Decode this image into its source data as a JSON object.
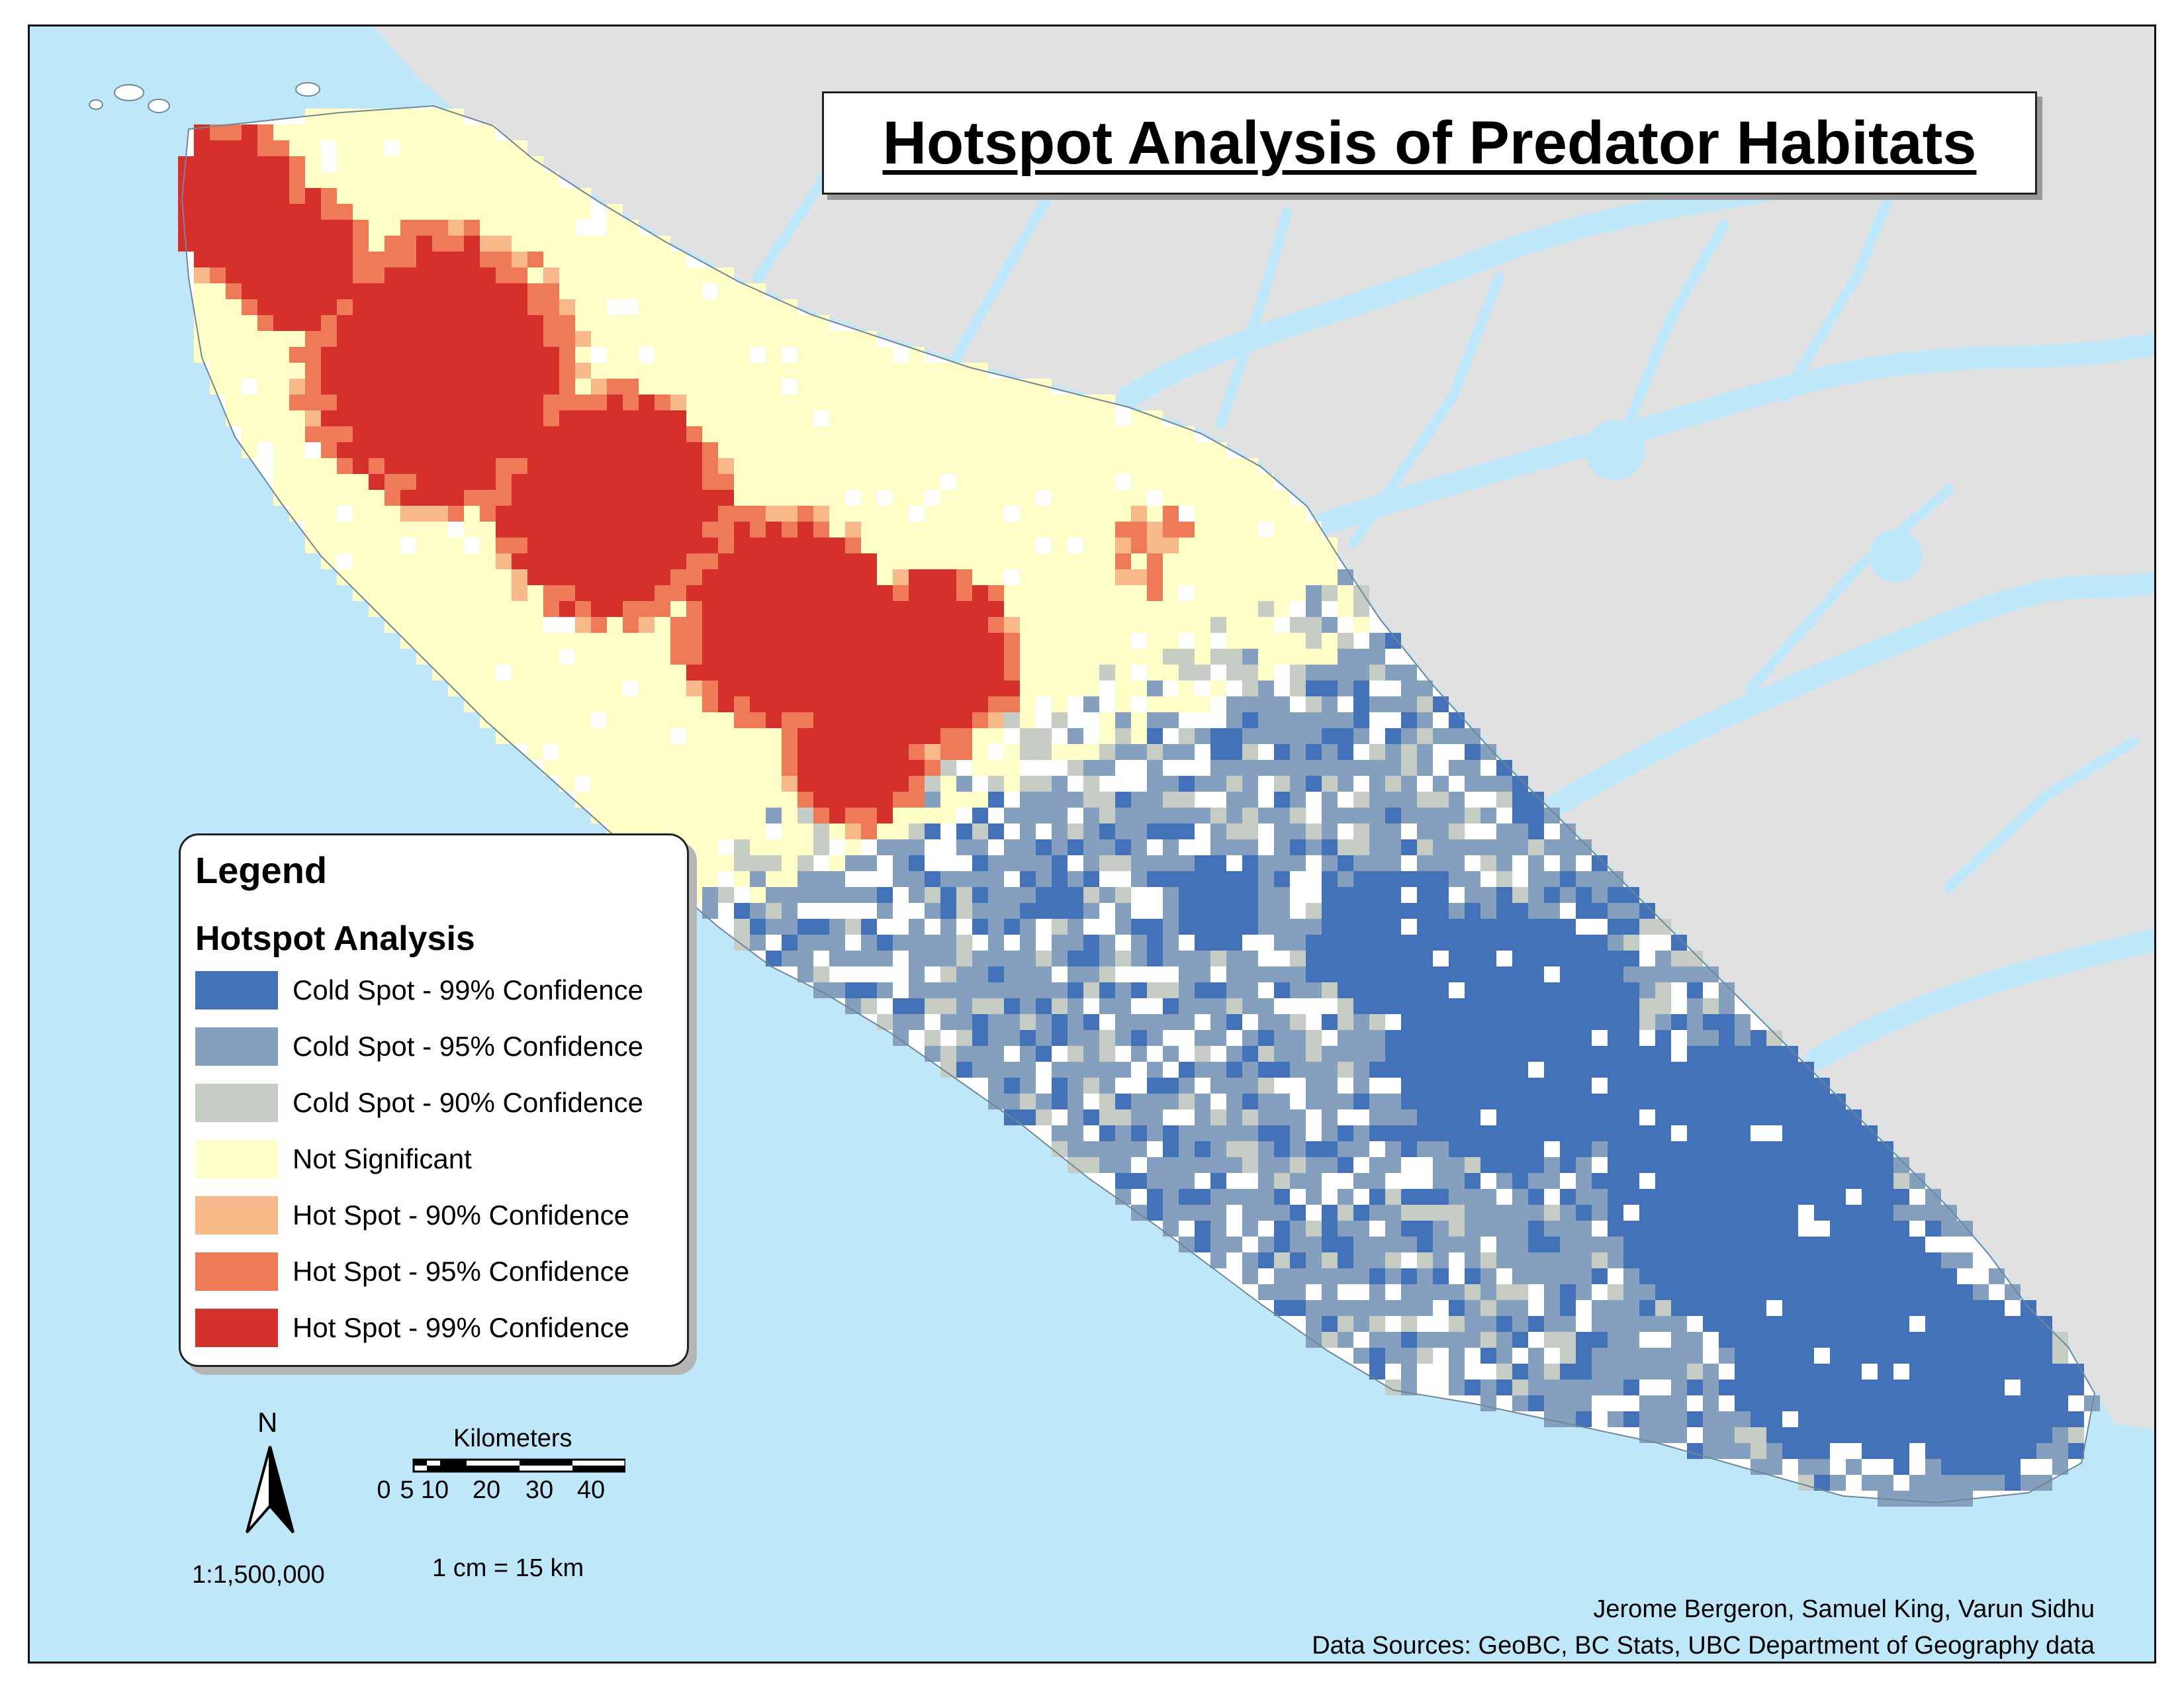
{
  "map": {
    "title": "Hotspot Analysis of Predator Habitats",
    "colors": {
      "water": "#bfe7fa",
      "mainland": "#e1e1e1",
      "island_base": "#ffffff"
    },
    "legend": {
      "title": "Legend",
      "subtitle": "Hotspot Analysis",
      "classes": [
        {
          "label": "Cold Spot - 99% Confidence",
          "color": "#4472b8"
        },
        {
          "label": "Cold Spot - 95% Confidence",
          "color": "#859fbf"
        },
        {
          "label": "Cold Spot - 90% Confidence",
          "color": "#c6cdc5"
        },
        {
          "label": "Not Significant",
          "color": "#fefec6"
        },
        {
          "label": "Hot Spot - 90% Confidence",
          "color": "#f8b98a"
        },
        {
          "label": "Hot Spot - 95% Confidence",
          "color": "#ee7a57"
        },
        {
          "label": "Hot Spot - 99% Confidence",
          "color": "#d6302b"
        }
      ]
    },
    "north_arrow": {
      "letter": "N"
    },
    "scale": {
      "ratio": "1:1,500,000",
      "unit_label": "Kilometers",
      "ticks": [
        "0",
        "5",
        "10",
        "20",
        "30",
        "40"
      ],
      "equivalence": "1 cm = 15 km"
    },
    "credits": {
      "authors": "Jerome Bergeron, Samuel King, Varun Sidhu",
      "sources": "Data Sources: GeoBC, BC Stats, UBC Department of Geography data"
    }
  }
}
